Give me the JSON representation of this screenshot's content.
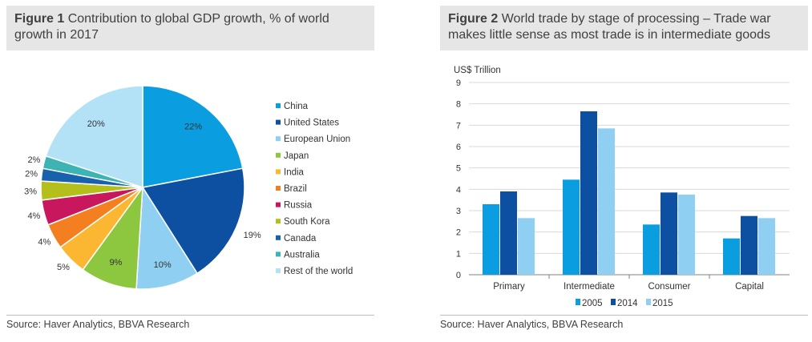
{
  "figure1": {
    "label": "Figure 1",
    "title": "Contribution to global GDP growth, % of world growth in 2017",
    "source": "Source: Haver Analytics, BBVA Research"
  },
  "figure2": {
    "label": "Figure 2",
    "title": "World trade by stage of processing – Trade war makes little sense as most trade is in intermediate goods",
    "source": "Source: Haver Analytics, BBVA Research"
  },
  "chart_data": [
    {
      "type": "pie",
      "title": "Contribution to global GDP growth, % of world growth in 2017",
      "legend_position": "right",
      "slices": [
        {
          "name": "China",
          "value": 22,
          "label": "22%",
          "color": "#0a9ee0"
        },
        {
          "name": "United States",
          "value": 19,
          "label": "19%",
          "color": "#0d4fa0"
        },
        {
          "name": "European Union",
          "value": 10,
          "label": "10%",
          "color": "#8fd0f2"
        },
        {
          "name": "Japan",
          "value": 9,
          "label": "9%",
          "color": "#8dc63f"
        },
        {
          "name": "India",
          "value": 5,
          "label": "5%",
          "color": "#fbb731"
        },
        {
          "name": "Brazil",
          "value": 4,
          "label": "4%",
          "color": "#f47f20"
        },
        {
          "name": "Russia",
          "value": 4,
          "label": "4%",
          "color": "#c8175d"
        },
        {
          "name": "South Kora",
          "value": 3,
          "label": "3%",
          "color": "#b4bf1b"
        },
        {
          "name": "Canada",
          "value": 2,
          "label": "2%",
          "color": "#1761ad"
        },
        {
          "name": "Australia",
          "value": 2,
          "label": "2%",
          "color": "#3db3b3"
        },
        {
          "name": "Rest of the world",
          "value": 20,
          "label": "20%",
          "color": "#b3e2f6"
        }
      ]
    },
    {
      "type": "bar",
      "title": "World trade by stage of processing – Trade war makes little sense as most trade is in intermediate goods",
      "ylabel": "US$ Trillion",
      "ylim": [
        0,
        9
      ],
      "yticks": [
        0,
        1,
        2,
        3,
        4,
        5,
        6,
        7,
        8,
        9
      ],
      "grid": true,
      "legend_position": "bottom",
      "categories": [
        "Primary",
        "Intermediate",
        "Consumer",
        "Capital"
      ],
      "series": [
        {
          "name": "2005",
          "values": [
            3.3,
            4.45,
            2.35,
            1.7
          ],
          "color": "#0a9ee0"
        },
        {
          "name": "2014",
          "values": [
            3.9,
            7.65,
            3.85,
            2.75
          ],
          "color": "#0d4fa0"
        },
        {
          "name": "2015",
          "values": [
            2.65,
            6.85,
            3.75,
            2.65
          ],
          "color": "#8fd0f2"
        }
      ]
    }
  ]
}
